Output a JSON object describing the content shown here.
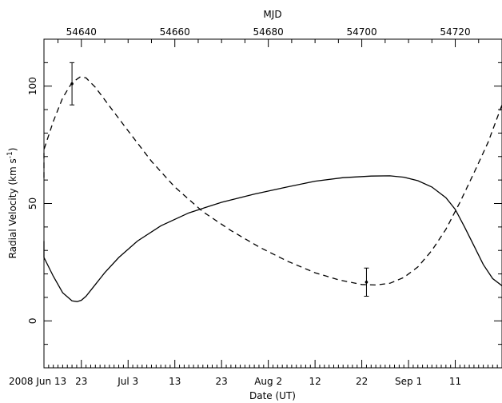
{
  "chart_data": {
    "type": "line",
    "xlabel": "Date (UT)",
    "x2label": "MJD",
    "ylabel_main": "Radial Velocity (km s",
    "ylabel_sup": "-1",
    "ylabel_close": ")",
    "xlim_mjd": [
      54632.0,
      54730.0
    ],
    "ylim": [
      -20,
      120
    ],
    "bottom_ticks": [
      {
        "mjd": 54632.0,
        "label": "2008 Jun 13"
      },
      {
        "mjd": 54640.0,
        "label": "23"
      },
      {
        "mjd": 54650.0,
        "label": "Jul 3"
      },
      {
        "mjd": 54660.0,
        "label": "13"
      },
      {
        "mjd": 54670.0,
        "label": "23"
      },
      {
        "mjd": 54680.0,
        "label": "Aug 2"
      },
      {
        "mjd": 54690.0,
        "label": "12"
      },
      {
        "mjd": 54700.0,
        "label": "22"
      },
      {
        "mjd": 54710.0,
        "label": "Sep 1"
      },
      {
        "mjd": 54720.0,
        "label": "11"
      }
    ],
    "top_ticks": [
      54640,
      54660,
      54680,
      54700,
      54720
    ],
    "top_tick_labels": [
      "54640",
      "54660",
      "54680",
      "54700",
      "54720"
    ],
    "y_ticks": [
      0,
      50,
      100
    ],
    "y_tick_labels": [
      "0",
      "50",
      "100"
    ],
    "series": [
      {
        "style": "solid",
        "x": [
          54630.2,
          54632,
          54634,
          54636,
          54638,
          54639.1,
          54640,
          54641,
          54643,
          54645,
          54648,
          54652,
          54657,
          54663,
          54670,
          54677,
          54684,
          54690,
          54696,
          54702,
          54706,
          54709,
          54712,
          54715,
          54718,
          54720,
          54722,
          54724,
          54726,
          54728,
          54730.2
        ],
        "y": [
          34,
          27,
          19,
          12,
          8.5,
          8.2,
          8.8,
          10.5,
          15.5,
          20.5,
          27,
          34,
          40.5,
          46,
          50.5,
          54,
          57,
          59.5,
          61,
          61.7,
          61.8,
          61.2,
          59.7,
          57,
          52.5,
          47.5,
          40,
          32,
          24,
          18,
          15
        ]
      },
      {
        "style": "dashed",
        "x": [
          54630.2,
          54632,
          54634,
          54636,
          54638,
          54639.8,
          54641,
          54643,
          54646,
          54650,
          54655,
          54660,
          54666,
          54672,
          54678,
          54684,
          54690,
          54695,
          54700,
          54703,
          54706,
          54709,
          54712,
          54715,
          54718,
          54721,
          54724,
          54727,
          54730.2
        ],
        "y": [
          61,
          73,
          85,
          95,
          101.5,
          104,
          103.5,
          99.5,
          91.5,
          81,
          68,
          57,
          46.5,
          38.5,
          31.5,
          25.5,
          20.5,
          17.5,
          15.5,
          15.3,
          16,
          18.5,
          23,
          30,
          39,
          50.5,
          63,
          76,
          92
        ]
      }
    ],
    "points": [
      {
        "x": 54638.0,
        "y": 101.0,
        "yerr_low": 92.0,
        "yerr_high": 110.0
      },
      {
        "x": 54701.0,
        "y": 16.5,
        "yerr_low": 10.5,
        "yerr_high": 22.5
      }
    ]
  }
}
